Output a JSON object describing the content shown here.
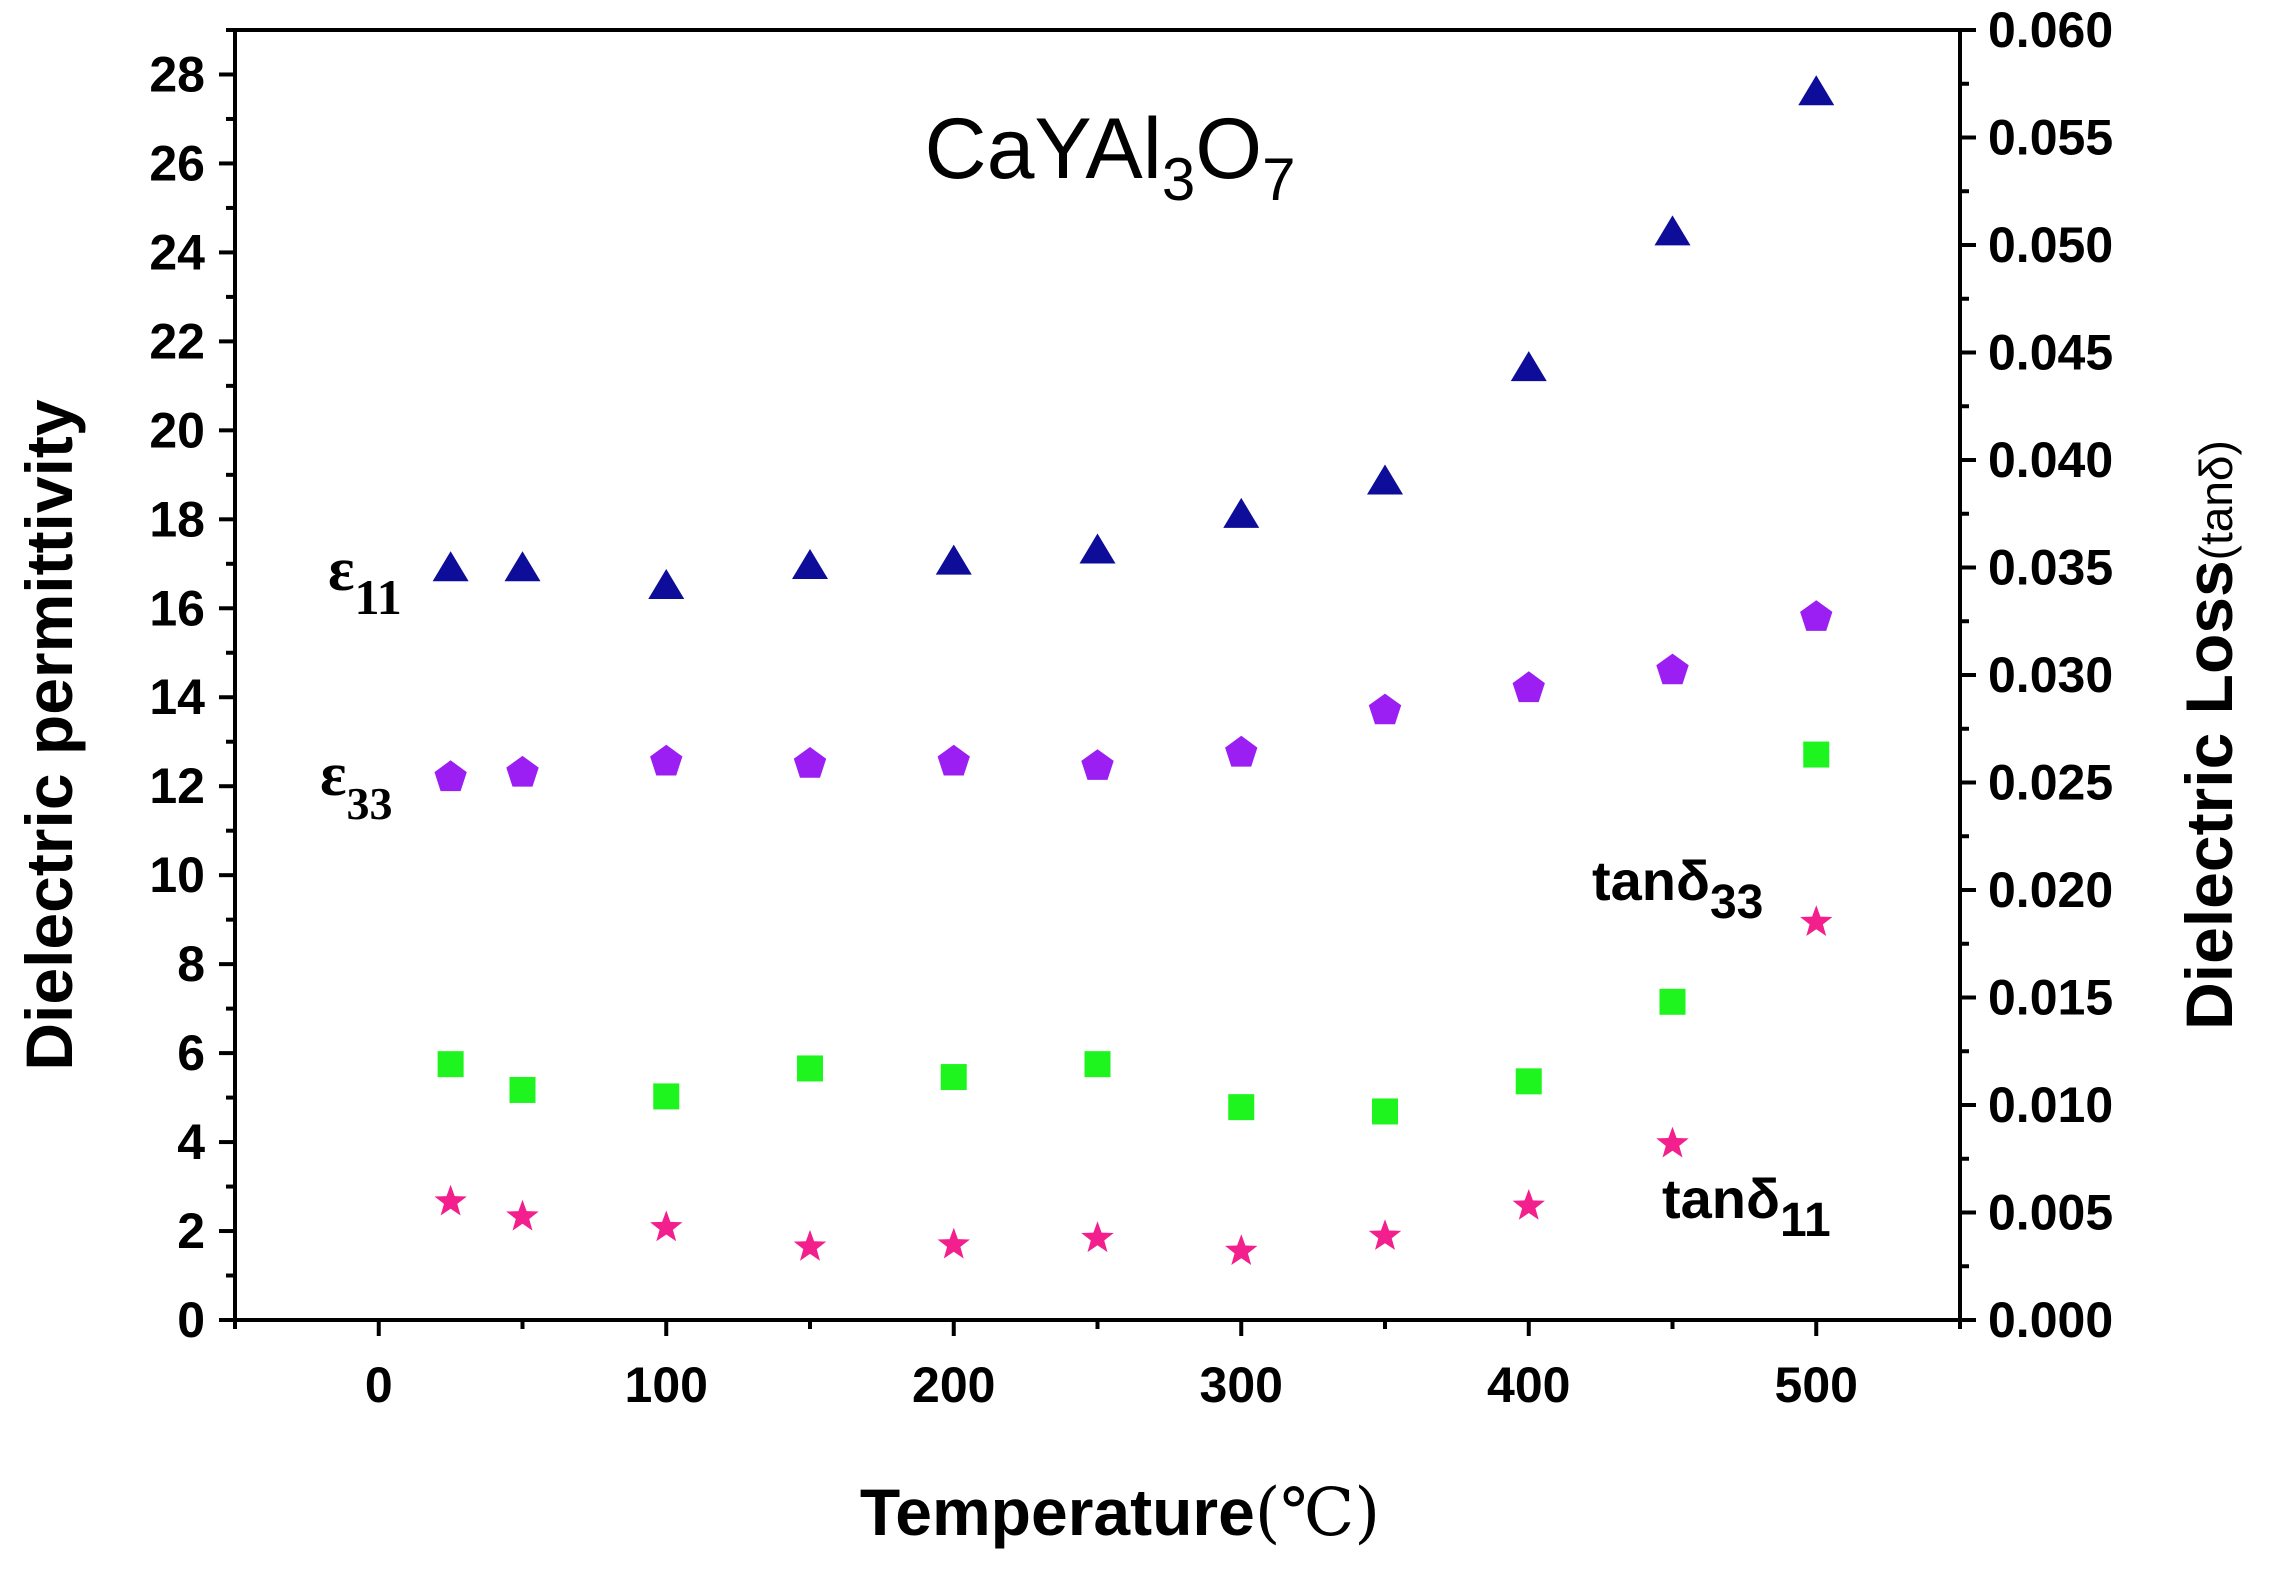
{
  "chart_data": {
    "type": "scatter",
    "title": "CaYAl3O7",
    "title_parts": {
      "prefix": "CaYAl",
      "sub1": "3",
      "mid": "O",
      "sub2": "7"
    },
    "xlabel": "Temperature",
    "xlabel_unit": "(℃)",
    "ylabel": "Dielectric permittivity",
    "y2label": "Dielectric Loss",
    "y2label_unit": "(tanδ)",
    "xlim": [
      -50,
      550
    ],
    "ylim": [
      0,
      29
    ],
    "y2lim": [
      0,
      0.06
    ],
    "x_ticks": [
      0,
      100,
      200,
      300,
      400,
      500
    ],
    "y_ticks": [
      0,
      2,
      4,
      6,
      8,
      10,
      12,
      14,
      16,
      18,
      20,
      22,
      24,
      26,
      28
    ],
    "y2_ticks": [
      "0.000",
      "0.005",
      "0.010",
      "0.015",
      "0.020",
      "0.025",
      "0.030",
      "0.035",
      "0.040",
      "0.045",
      "0.050",
      "0.055",
      "0.060"
    ],
    "x": [
      25,
      50,
      100,
      150,
      200,
      250,
      300,
      350,
      400,
      450,
      500
    ],
    "series": [
      {
        "name": "ε11",
        "axis": "left",
        "marker": "triangle",
        "color": "#0d0d99",
        "values": [
          16.9,
          16.9,
          16.5,
          16.95,
          17.05,
          17.3,
          18.1,
          18.85,
          21.4,
          24.45,
          27.6
        ]
      },
      {
        "name": "ε33",
        "axis": "left",
        "marker": "pentagon",
        "color": "#9b1ff2",
        "values": [
          12.2,
          12.3,
          12.55,
          12.5,
          12.55,
          12.45,
          12.75,
          13.7,
          14.2,
          14.6,
          15.8
        ]
      },
      {
        "name": "tanδ33",
        "axis": "right",
        "marker": "square",
        "color": "#1ef51e",
        "values": [
          0.0119,
          0.0107,
          0.0104,
          0.0117,
          0.0113,
          0.0119,
          0.0099,
          0.0097,
          0.0111,
          0.0148,
          0.0263
        ]
      },
      {
        "name": "tanδ11",
        "axis": "right",
        "marker": "star",
        "color": "#f21f8c",
        "values": [
          0.0055,
          0.0048,
          0.0043,
          0.0034,
          0.0035,
          0.0038,
          0.0032,
          0.0039,
          0.0053,
          0.0082,
          0.0185
        ]
      }
    ],
    "annotations": [
      {
        "id": "eps11",
        "symbol": "ε",
        "sub": "11"
      },
      {
        "id": "eps33",
        "symbol": "ε",
        "sub": "33"
      },
      {
        "id": "tan33",
        "symbol": "tanδ",
        "sub": "33"
      },
      {
        "id": "tan11",
        "symbol": "tanδ",
        "sub": "11"
      }
    ]
  }
}
